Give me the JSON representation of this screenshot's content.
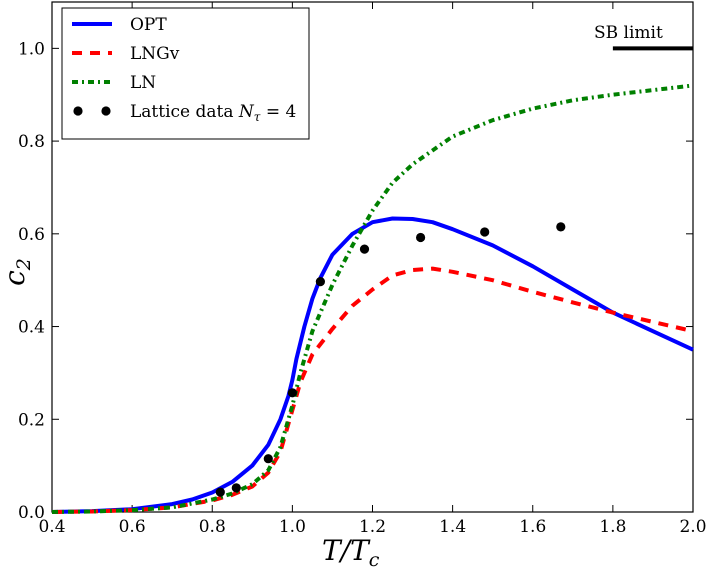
{
  "chart_data": {
    "type": "line",
    "title": "",
    "xlabel": "T/T",
    "xlabel_sub": "c",
    "ylabel": "c",
    "ylabel_sub": "2",
    "xlim": [
      0.4,
      2.0
    ],
    "ylim": [
      0.0,
      1.1
    ],
    "xticks": [
      "0.4",
      "0.6",
      "0.8",
      "1.0",
      "1.2",
      "1.4",
      "1.6",
      "1.8",
      "2.0"
    ],
    "yticks": [
      "0.0",
      "0.2",
      "0.4",
      "0.6",
      "0.8",
      "1.0"
    ],
    "legend_position": "top-left",
    "series": [
      {
        "name": "OPT",
        "color": "#0000ff",
        "style": "solid",
        "x": [
          0.4,
          0.5,
          0.6,
          0.7,
          0.75,
          0.8,
          0.85,
          0.9,
          0.94,
          0.97,
          0.99,
          1.0,
          1.01,
          1.03,
          1.05,
          1.07,
          1.1,
          1.15,
          1.2,
          1.25,
          1.3,
          1.35,
          1.4,
          1.5,
          1.6,
          1.7,
          1.8,
          1.9,
          2.0
        ],
        "y": [
          0.0,
          0.002,
          0.006,
          0.017,
          0.027,
          0.042,
          0.065,
          0.1,
          0.145,
          0.2,
          0.25,
          0.285,
          0.33,
          0.4,
          0.46,
          0.505,
          0.555,
          0.6,
          0.625,
          0.633,
          0.632,
          0.625,
          0.61,
          0.575,
          0.53,
          0.48,
          0.43,
          0.39,
          0.35
        ]
      },
      {
        "name": "LNGv",
        "color": "#ff0000",
        "style": "dashed",
        "x": [
          0.4,
          0.5,
          0.6,
          0.7,
          0.8,
          0.85,
          0.9,
          0.94,
          0.97,
          1.0,
          1.02,
          1.05,
          1.1,
          1.15,
          1.2,
          1.25,
          1.3,
          1.35,
          1.4,
          1.5,
          1.6,
          1.7,
          1.8,
          1.9,
          2.0
        ],
        "y": [
          0.0,
          0.001,
          0.004,
          0.01,
          0.025,
          0.037,
          0.055,
          0.085,
          0.13,
          0.22,
          0.28,
          0.34,
          0.395,
          0.445,
          0.48,
          0.51,
          0.522,
          0.525,
          0.518,
          0.5,
          0.475,
          0.452,
          0.43,
          0.41,
          0.39
        ]
      },
      {
        "name": "LN",
        "color": "#008000",
        "style": "dashdot",
        "x": [
          0.4,
          0.5,
          0.6,
          0.7,
          0.8,
          0.85,
          0.9,
          0.94,
          0.97,
          1.0,
          1.02,
          1.05,
          1.1,
          1.15,
          1.2,
          1.25,
          1.3,
          1.4,
          1.5,
          1.6,
          1.7,
          1.8,
          1.9,
          2.0
        ],
        "y": [
          0.0,
          0.001,
          0.004,
          0.01,
          0.027,
          0.04,
          0.06,
          0.09,
          0.14,
          0.23,
          0.3,
          0.39,
          0.49,
          0.575,
          0.65,
          0.71,
          0.75,
          0.81,
          0.845,
          0.87,
          0.888,
          0.9,
          0.91,
          0.92
        ]
      }
    ],
    "scatter": {
      "name": "Lattice data",
      "name_math": "N",
      "name_sub": "τ",
      "name_value": " = 4",
      "color": "#000000",
      "x": [
        0.82,
        0.86,
        0.94,
        1.0,
        1.07,
        1.18,
        1.32,
        1.48,
        1.67
      ],
      "y": [
        0.043,
        0.052,
        0.115,
        0.257,
        0.497,
        0.567,
        0.592,
        0.604,
        0.615
      ]
    },
    "annotation": {
      "text": "SB limit",
      "value": 1.0,
      "x_start": 1.8,
      "x_end": 2.0
    }
  }
}
